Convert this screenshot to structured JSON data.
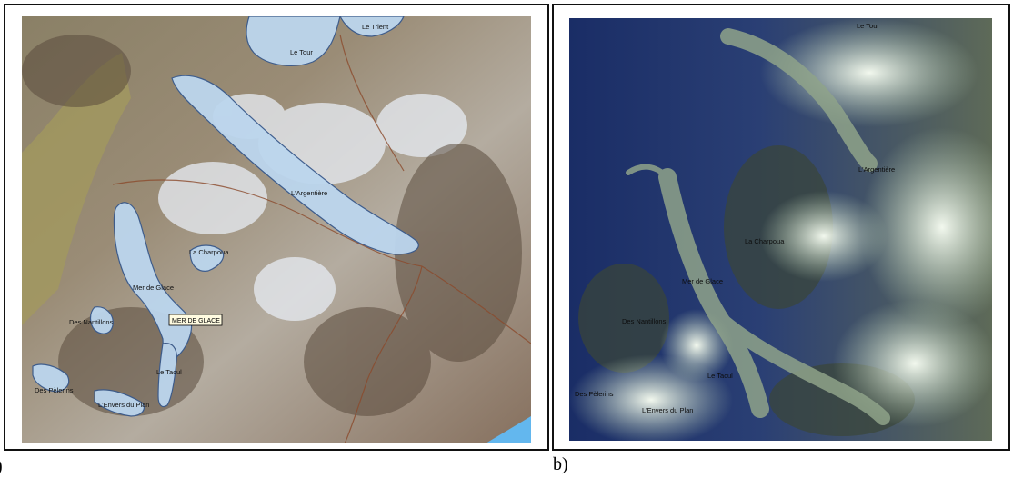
{
  "panels": {
    "a": {
      "caption_visible": ")",
      "labels": {
        "le_tour": "Le Tour",
        "le_trient": "Le Trient",
        "argentiere": "L'Argentière",
        "la_charpoua": "La Charpoua",
        "mer_de_glace": "Mer de Glace",
        "des_nantillons": "Des Nantillons",
        "le_tacul": "Le Tacul",
        "des_pelerins": "Des Pèlerins",
        "envers_du_plan": "L'Envers du Plan"
      },
      "callout": "MER DE GLACE",
      "colors": {
        "glacier_fill": "#bcd6ee",
        "glacier_outline": "#3a5a8c",
        "terrain": "#8a7a68",
        "lake": "#63b7ee"
      }
    },
    "b": {
      "caption": "b)",
      "labels": {
        "le_tour": "Le Tour",
        "argentiere": "L'Argentière",
        "la_charpoua": "La Charpoua",
        "mer_de_glace": "Mer de Glace",
        "des_nantillons": "Des Nantillons",
        "le_tacul": "Le Tacul",
        "des_pelerins": "Des Pèlerins",
        "envers_du_plan": "L'Envers du Plan"
      },
      "colors": {
        "valley": "#1e3470",
        "snow": "#dfeede",
        "rock": "#4d5a4a"
      }
    }
  }
}
